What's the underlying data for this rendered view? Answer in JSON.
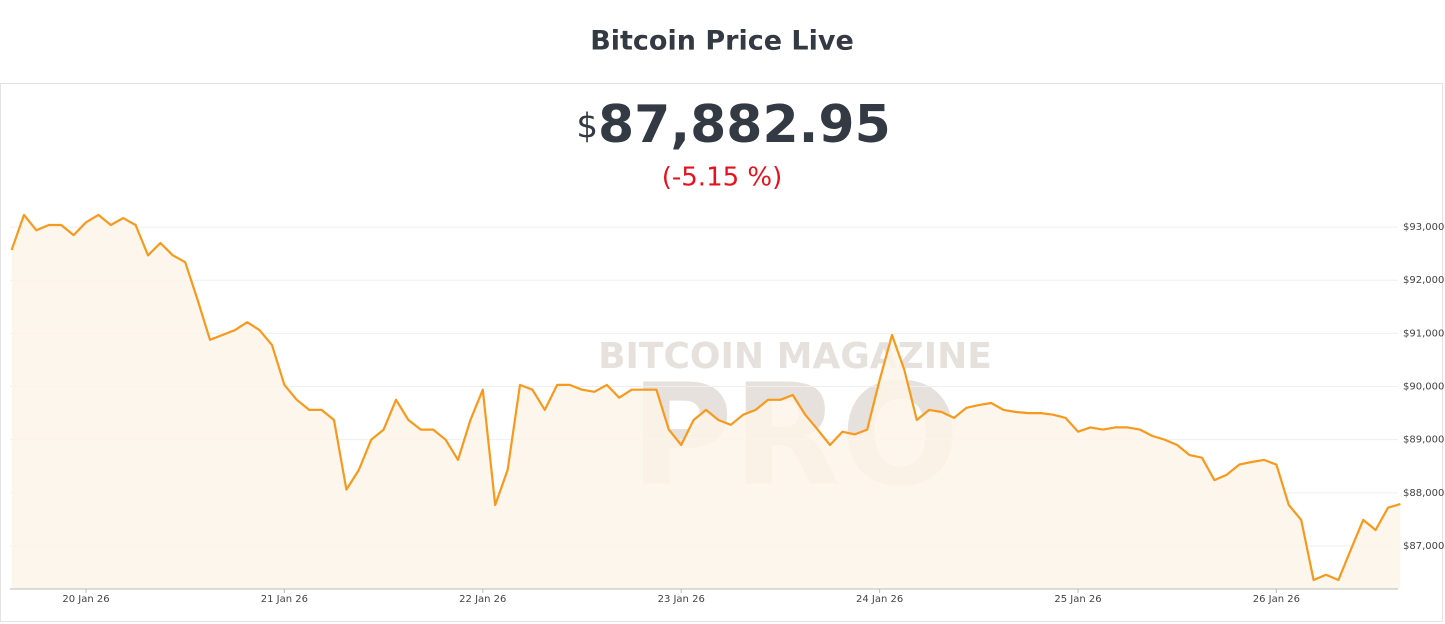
{
  "chart_data": {
    "type": "line",
    "title": "Bitcoin Price Live",
    "currency": "$",
    "price": "87,882.95",
    "change": "(-5.15 %)",
    "watermark": [
      "BITCOIN MAGAZINE",
      "PRO"
    ],
    "categories": [
      null,
      null,
      null,
      null,
      null,
      null,
      "20 Jan 26",
      null,
      null,
      null,
      null,
      null,
      null,
      null,
      null,
      null,
      null,
      null,
      null,
      null,
      null,
      null,
      "21 Jan 26",
      null,
      null,
      null,
      null,
      null,
      null,
      null,
      null,
      null,
      null,
      null,
      null,
      null,
      null,
      null,
      "22 Jan 26",
      null,
      null,
      null,
      null,
      null,
      null,
      null,
      null,
      null,
      null,
      null,
      null,
      null,
      null,
      null,
      "23 Jan 26",
      null,
      null,
      null,
      null,
      null,
      null,
      null,
      null,
      null,
      null,
      null,
      null,
      null,
      null,
      null,
      "24 Jan 26",
      null,
      null,
      null,
      null,
      null,
      null,
      null,
      null,
      null,
      null,
      null,
      null,
      null,
      null,
      null,
      "25 Jan 26",
      null,
      null,
      null,
      null,
      null,
      null,
      null,
      null,
      null,
      null,
      null,
      null,
      null,
      null,
      null,
      "26 Jan 26",
      null,
      null,
      null,
      null,
      null,
      null,
      null,
      null,
      null,
      null
    ],
    "series": [
      {
        "name": "Bitcoin",
        "color": "#f7991c",
        "values": [
          92570,
          93230,
          92940,
          93040,
          93040,
          92850,
          93090,
          93230,
          93040,
          93170,
          93040,
          92470,
          92700,
          92470,
          92340,
          91630,
          90880,
          90970,
          91060,
          91210,
          91060,
          90780,
          90030,
          89750,
          89560,
          89560,
          89370,
          88060,
          88430,
          89000,
          89190,
          89750,
          89370,
          89190,
          89190,
          89000,
          88620,
          89370,
          89940,
          87770,
          88430,
          90030,
          89940,
          89560,
          90030,
          90030,
          89940,
          89900,
          90030,
          89790,
          89940,
          89940,
          89940,
          89190,
          88900,
          89370,
          89560,
          89370,
          89280,
          89470,
          89560,
          89750,
          89750,
          89840,
          89470,
          89190,
          88900,
          89150,
          89100,
          89190,
          90120,
          90970,
          90310,
          89370,
          89560,
          89520,
          89410,
          89600,
          89650,
          89690,
          89560,
          89520,
          89500,
          89500,
          89470,
          89410,
          89150,
          89230,
          89190,
          89230,
          89230,
          89190,
          89070,
          89000,
          88900,
          88710,
          88660,
          88240,
          88340,
          88530,
          88580,
          88620,
          88530,
          87770,
          87490,
          86360,
          86460,
          86360,
          86930,
          87490,
          87300,
          87720,
          87790
        ]
      }
    ],
    "area_color": "#fdf5e9",
    "ylim": [
      86190,
      93510
    ],
    "yticks": [
      {
        "value": 87000,
        "label": "$87,000"
      },
      {
        "value": 88000,
        "label": "$88,000"
      },
      {
        "value": 89000,
        "label": "$89,000"
      },
      {
        "value": 90000,
        "label": "$90,000"
      },
      {
        "value": 91000,
        "label": "$91,000"
      },
      {
        "value": 92000,
        "label": "$92,000"
      },
      {
        "value": 93000,
        "label": "$93,000"
      }
    ],
    "grid": true
  }
}
